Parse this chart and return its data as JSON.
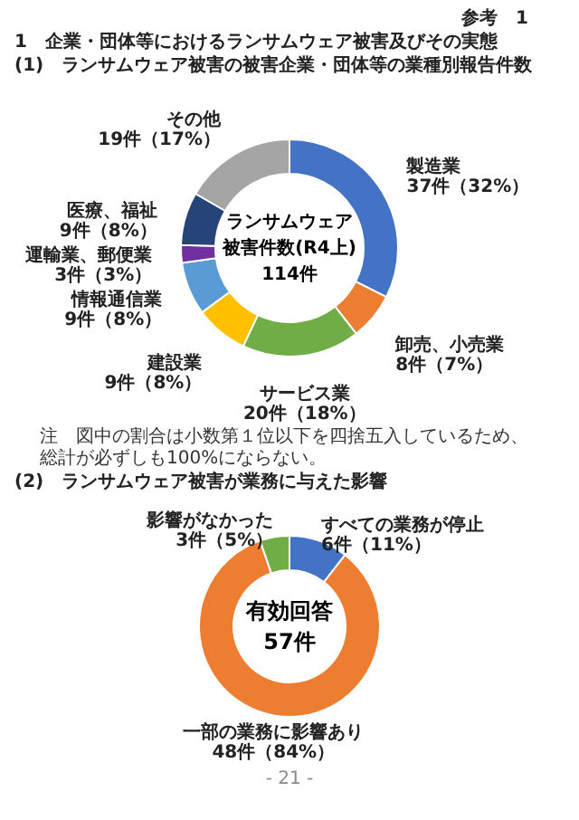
{
  "chart_data": [
    {
      "type": "donut",
      "title": "1　企業・団体等におけるランサムウェア被害及びその実態",
      "subtitle": "(1)　ランサムウェア被害の被害企業・団体等の業種別報告件数",
      "categories": [
        "製造業",
        "卸売、小売業",
        "サービス業",
        "建設業",
        "情報通信業",
        "運輸業、郵便業",
        "医療、福祉",
        "その他"
      ],
      "values": [
        37,
        8,
        20,
        9,
        9,
        3,
        9,
        19
      ],
      "value_labels": [
        "37件（32%）",
        "8件（7%）",
        "20件（18%）",
        "9件（8%）",
        "9件（8%）",
        "3件（3%）",
        "9件（8%）",
        "19件（17%）"
      ],
      "colors": [
        "#4472c4",
        "#ed7d31",
        "#70ad47",
        "#ffc000",
        "#5b9bd5",
        "#7030a0",
        "#264478",
        "#a5a5a5"
      ],
      "annotations": [
        "参考　1",
        "ランサムウェア",
        "被害件数(R4上)",
        "114件",
        "注　図中の割合は小数第１位以下を四捨五入しているため、総計が必ずしも100%にならない。"
      ]
    },
    {
      "type": "donut",
      "title": "(2)　ランサムウェア被害が業務に与えた影響",
      "categories": [
        "すべての業務が停止",
        "一部の業務に影響あり",
        "影響がなかった"
      ],
      "values": [
        6,
        48,
        3
      ],
      "value_labels": [
        "6件（11%）",
        "48件（84%）",
        "3件（5%）"
      ],
      "colors": [
        "#4472c4",
        "#ed7d31",
        "#70ad47"
      ],
      "annotations": [
        "有効回答",
        "57件",
        "- 21 -"
      ]
    }
  ]
}
